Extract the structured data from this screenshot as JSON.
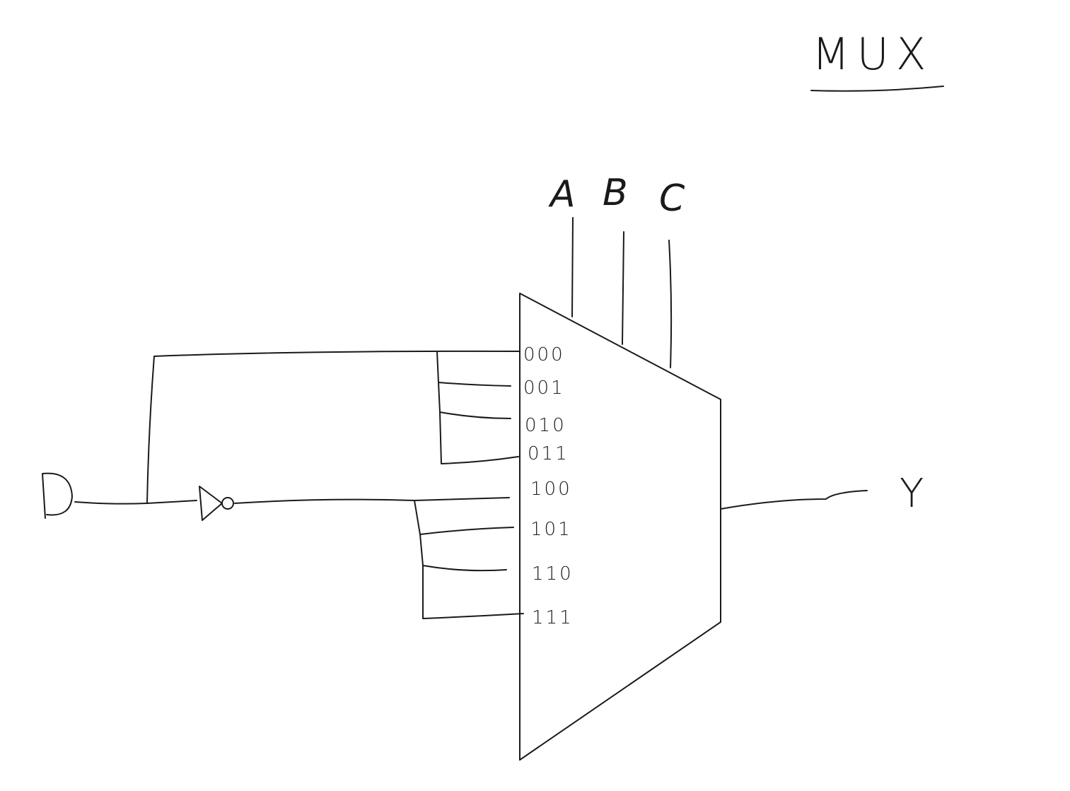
{
  "title": "MUX",
  "select_inputs": [
    "A",
    "B",
    "C"
  ],
  "data_input_codes": [
    "000",
    "001",
    "010",
    "011",
    "100",
    "101",
    "110",
    "111"
  ],
  "output_label": "Y"
}
